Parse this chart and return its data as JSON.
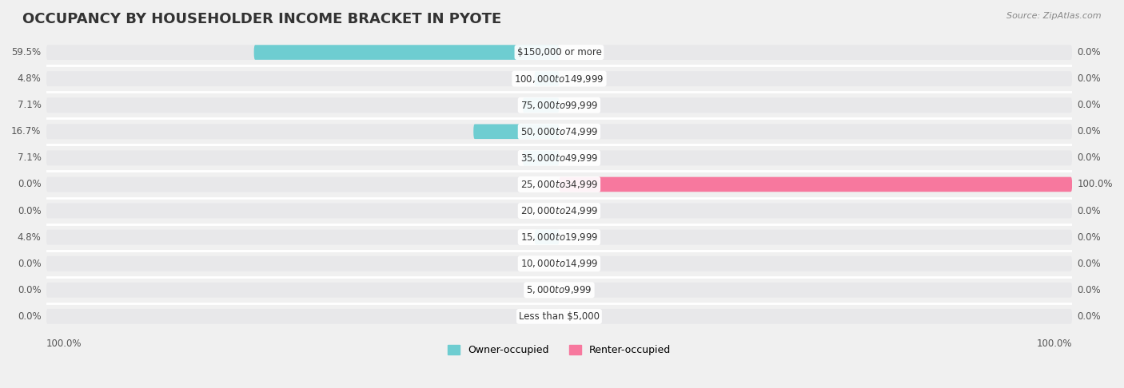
{
  "title": "OCCUPANCY BY HOUSEHOLDER INCOME BRACKET IN PYOTE",
  "source": "Source: ZipAtlas.com",
  "categories": [
    "Less than $5,000",
    "$5,000 to $9,999",
    "$10,000 to $14,999",
    "$15,000 to $19,999",
    "$20,000 to $24,999",
    "$25,000 to $34,999",
    "$35,000 to $49,999",
    "$50,000 to $74,999",
    "$75,000 to $99,999",
    "$100,000 to $149,999",
    "$150,000 or more"
  ],
  "owner_values": [
    0.0,
    0.0,
    0.0,
    4.8,
    0.0,
    0.0,
    7.1,
    16.7,
    7.1,
    4.8,
    59.5
  ],
  "renter_values": [
    0.0,
    0.0,
    0.0,
    0.0,
    0.0,
    100.0,
    0.0,
    0.0,
    0.0,
    0.0,
    0.0
  ],
  "owner_color": "#6ecdd1",
  "renter_color": "#f7789e",
  "bg_color": "#f0f0f0",
  "bar_bg_color": "#e8e8e8",
  "title_fontsize": 13,
  "label_fontsize": 8.5,
  "category_fontsize": 8.5,
  "legend_fontsize": 9,
  "source_fontsize": 8,
  "bar_height": 0.55,
  "max_value": 100.0,
  "x_axis_left_label": "100.0%",
  "x_axis_right_label": "100.0%"
}
